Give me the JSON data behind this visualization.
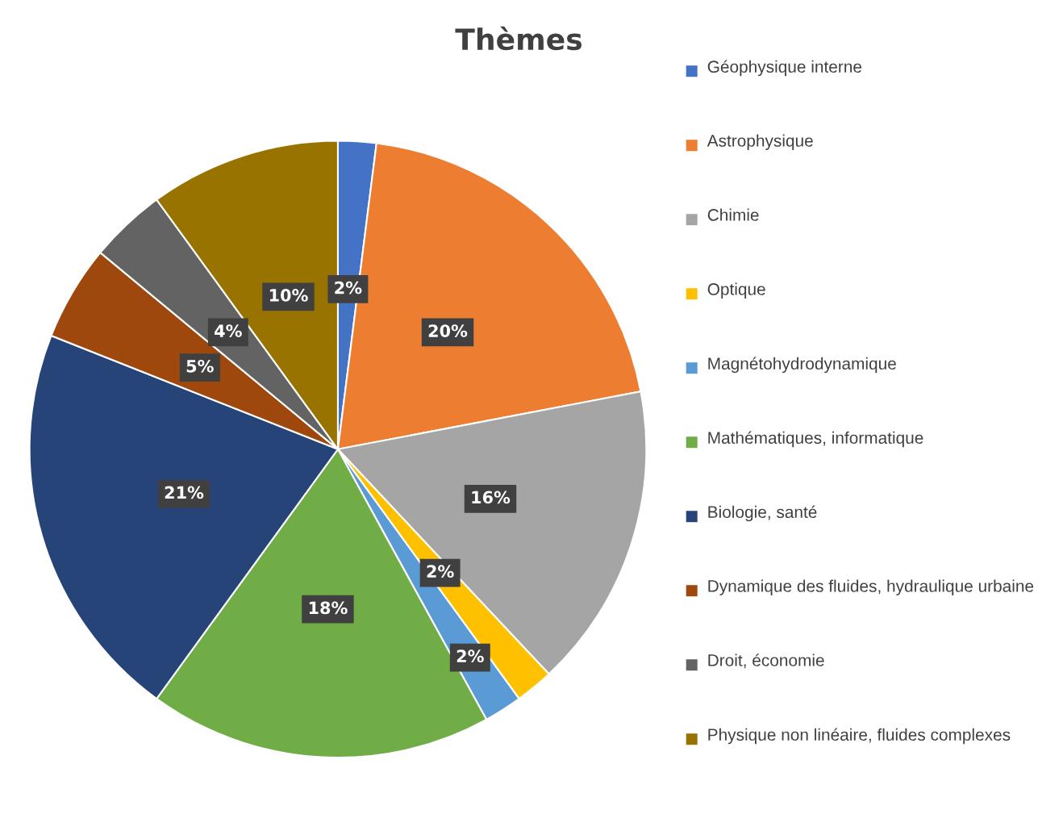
{
  "chart_data": {
    "type": "pie",
    "title": "Thèmes",
    "categories": [
      "Géophysique interne",
      "Astrophysique",
      "Chimie",
      "Optique",
      "Magnétohydrodynamique",
      "Mathématiques, informatique",
      "Biologie, santé",
      "Dynamique des fluides, hydraulique urbaine",
      "Droit, économie",
      "Physique non linéaire, fluides complexes"
    ],
    "values": [
      2,
      20,
      16,
      2,
      2,
      18,
      21,
      5,
      4,
      10
    ],
    "value_labels": [
      "2%",
      "20%",
      "16%",
      "2%",
      "2%",
      "18%",
      "21%",
      "5%",
      "4%",
      "10%"
    ],
    "colors": [
      "#4472c4",
      "#ed7d31",
      "#a5a5a5",
      "#ffc000",
      "#5b9bd5",
      "#70ad47",
      "#264478",
      "#9e480e",
      "#636363",
      "#997300"
    ],
    "legend": "right"
  }
}
